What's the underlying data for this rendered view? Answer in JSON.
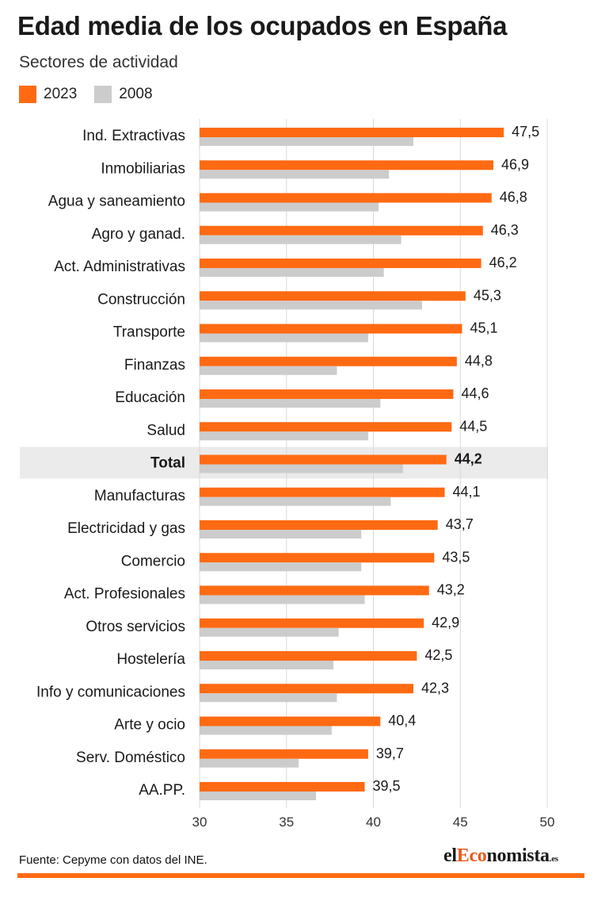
{
  "header": {
    "title": "Edad media de los ocupados en España",
    "subtitle": "Sectores de actividad"
  },
  "colors": {
    "series_2023": "#ff6a13",
    "series_2008": "#cccccc",
    "highlight_band": "#ebebeb",
    "footer_rule": "#ff6a13"
  },
  "footer": {
    "source": "Fuente: Cepyme con datos del INE.",
    "logo_prefix": "el",
    "logo_accent": "Eco",
    "logo_suffix": "nomista",
    "logo_tld": ".es"
  },
  "chart_data": {
    "type": "bar",
    "orientation": "horizontal",
    "categories": [
      "Ind. Extractivas",
      "Inmobiliarias",
      "Agua y saneamiento",
      "Agro y ganad.",
      "Act. Administrativas",
      "Construcción",
      "Transporte",
      "Finanzas",
      "Educación",
      "Salud",
      "Total",
      "Manufacturas",
      "Electricidad y gas",
      "Comercio",
      "Act. Profesionales",
      "Otros servicios",
      "Hostelería",
      "Info y comunicaciones",
      "Arte y ocio",
      "Serv. Doméstico",
      "AA.PP."
    ],
    "series": [
      {
        "name": "2023",
        "values": [
          47.5,
          46.9,
          46.8,
          46.3,
          46.2,
          45.3,
          45.1,
          44.8,
          44.6,
          44.5,
          44.2,
          44.1,
          43.7,
          43.5,
          43.2,
          42.9,
          42.5,
          42.3,
          40.4,
          39.7,
          39.5
        ],
        "labels": [
          "47,5",
          "46,9",
          "46,8",
          "46,3",
          "46,2",
          "45,3",
          "45,1",
          "44,8",
          "44,6",
          "44,5",
          "44,2",
          "44,1",
          "43,7",
          "43,5",
          "43,2",
          "42,9",
          "42,5",
          "42,3",
          "40,4",
          "39,7",
          "39,5"
        ]
      },
      {
        "name": "2008",
        "values": [
          42.3,
          40.9,
          40.3,
          41.6,
          40.6,
          42.8,
          39.7,
          37.9,
          40.4,
          39.7,
          41.7,
          41.0,
          39.3,
          39.3,
          39.5,
          38.0,
          37.7,
          37.9,
          37.6,
          35.7,
          36.7
        ]
      }
    ],
    "highlight_category": "Total",
    "xlim": [
      30,
      50
    ],
    "xticks": [
      30,
      35,
      40,
      45,
      50
    ],
    "grid": true,
    "legend": "top-left"
  }
}
